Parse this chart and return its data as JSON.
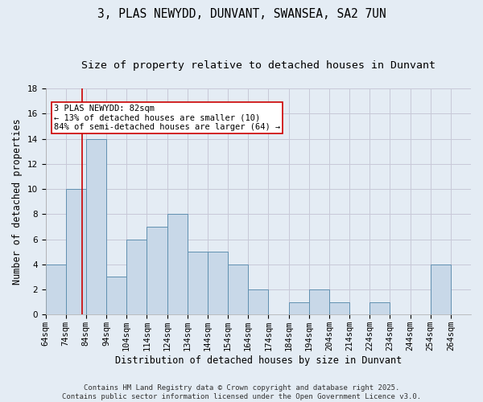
{
  "title_line1": "3, PLAS NEWYDD, DUNVANT, SWANSEA, SA2 7UN",
  "title_line2": "Size of property relative to detached houses in Dunvant",
  "xlabel": "Distribution of detached houses by size in Dunvant",
  "ylabel": "Number of detached properties",
  "bins": [
    "64sqm",
    "74sqm",
    "84sqm",
    "94sqm",
    "104sqm",
    "114sqm",
    "124sqm",
    "134sqm",
    "144sqm",
    "154sqm",
    "164sqm",
    "174sqm",
    "184sqm",
    "194sqm",
    "204sqm",
    "214sqm",
    "224sqm",
    "234sqm",
    "244sqm",
    "254sqm",
    "264sqm"
  ],
  "bar_heights": [
    4,
    10,
    14,
    3,
    6,
    7,
    8,
    5,
    5,
    4,
    2,
    0,
    1,
    2,
    1,
    0,
    1,
    0,
    0,
    4,
    0
  ],
  "bar_color": "#c8d8e8",
  "bar_edge_color": "#6090b0",
  "grid_color": "#c8c8d8",
  "bg_color": "#e4ecf4",
  "vline_x_bin": 1,
  "vline_color": "#cc0000",
  "annotation_text": "3 PLAS NEWYDD: 82sqm\n← 13% of detached houses are smaller (10)\n84% of semi-detached houses are larger (64) →",
  "annotation_box_color": "#ffffff",
  "annotation_box_edge": "#cc0000",
  "ylim": [
    0,
    18
  ],
  "yticks": [
    0,
    2,
    4,
    6,
    8,
    10,
    12,
    14,
    16,
    18
  ],
  "footer": "Contains HM Land Registry data © Crown copyright and database right 2025.\nContains public sector information licensed under the Open Government Licence v3.0.",
  "title_fontsize": 10.5,
  "subtitle_fontsize": 9.5,
  "axis_label_fontsize": 8.5,
  "tick_fontsize": 7.5,
  "annotation_fontsize": 7.5,
  "footer_fontsize": 6.5
}
